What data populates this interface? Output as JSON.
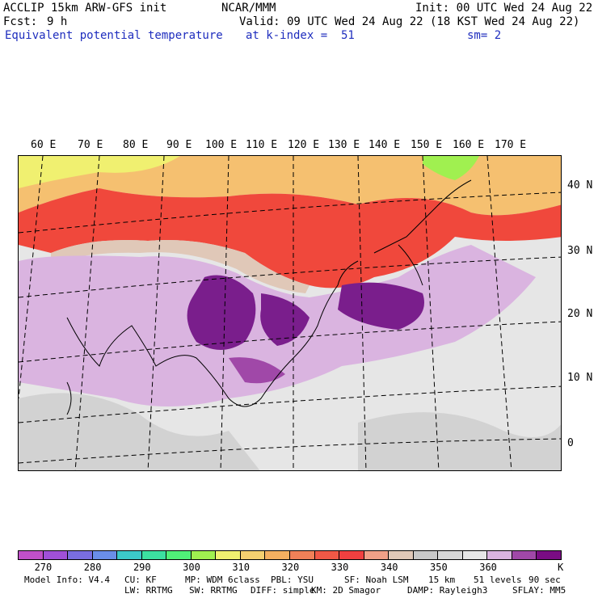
{
  "header": {
    "model": "ACCLIP 15km ARW-GFS init",
    "center": "NCAR/MMM",
    "init": "Init: 00 UTC Wed 24 Aug 22",
    "fcst_label": "Fcst:",
    "fcst_value": "9 h",
    "valid": "Valid: 09 UTC Wed 24 Aug 22 (18 KST Wed 24 Aug 22)",
    "field": "Equivalent potential temperature",
    "level": "at k-index =  51",
    "smooth": "sm= 2"
  },
  "map": {
    "longitude_labels": [
      "60 E",
      "70 E",
      "80 E",
      "90 E",
      "100 E",
      "110 E",
      "120 E",
      "130 E",
      "140 E",
      "150 E",
      "160 E",
      "170 E"
    ],
    "latitude_labels": [
      "40 N",
      "30 N",
      "20 N",
      "10 N",
      "0"
    ],
    "regions": [
      {
        "name": "north-warm-band",
        "color": "#f5c070"
      },
      {
        "name": "red-band",
        "color": "#f0483c"
      },
      {
        "name": "lavender-tropics",
        "color": "#dab4e0"
      },
      {
        "name": "dark-purple-core",
        "color": "#7a1e8c"
      },
      {
        "name": "grey-background",
        "color": "#e6e6e6"
      }
    ]
  },
  "colorbar": {
    "unit": "K",
    "colors": [
      "#c050c8",
      "#a050d8",
      "#7a6ee0",
      "#6a8ee8",
      "#3cc8c8",
      "#3ce0a0",
      "#50f078",
      "#a0f050",
      "#f0f070",
      "#f5d070",
      "#f5b060",
      "#f08058",
      "#f05846",
      "#f04040",
      "#f0a088",
      "#e0c8b8",
      "#c8c8c8",
      "#d8d8d8",
      "#e6e6e6",
      "#dab4e0",
      "#a048a8",
      "#7a0c84"
    ],
    "ticks": [
      "270",
      "280",
      "290",
      "300",
      "310",
      "320",
      "330",
      "340",
      "350",
      "360"
    ]
  },
  "footer": {
    "line1": [
      "Model Info: V4.4",
      "CU: KF",
      "MP: WDM 6class",
      "PBL: YSU",
      "SF: Noah LSM",
      "15 km",
      "51 levels",
      "90 sec"
    ],
    "line2": [
      "LW: RRTMG",
      "SW: RRTMG",
      "DIFF: simple",
      "KM: 2D Smagor",
      "DAMP: Rayleigh3",
      "SFLAY: MM5"
    ]
  }
}
